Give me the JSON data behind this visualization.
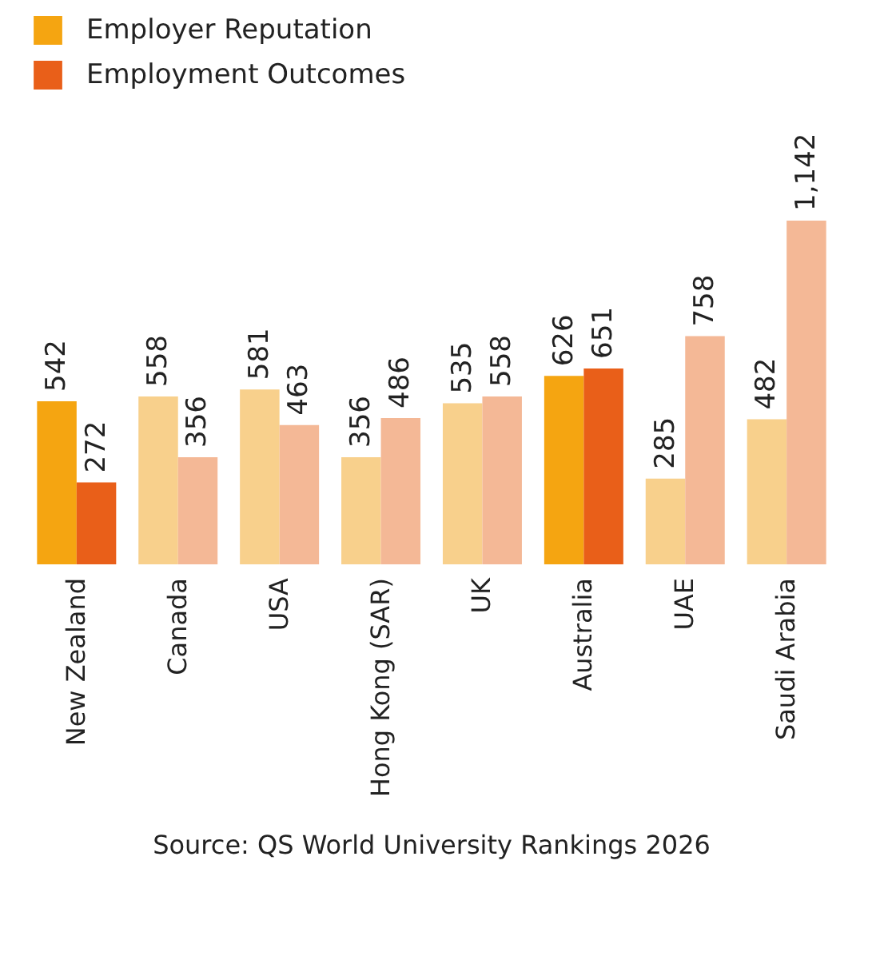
{
  "chart_data": {
    "type": "bar",
    "categories": [
      "New Zealand",
      "Canada",
      "USA",
      "Hong Kong (SAR)",
      "UK",
      "Australia",
      "UAE",
      "Saudi Arabia"
    ],
    "series": [
      {
        "name": "Employer Reputation",
        "color": "#f5a511",
        "colors": [
          "#f5a511",
          "#f8d08c",
          "#f8d08c",
          "#f8d08c",
          "#f8d08c",
          "#f5a511",
          "#f8d08c",
          "#f8d08c"
        ],
        "values": [
          542,
          558,
          581,
          356,
          535,
          626,
          285,
          482
        ],
        "value_labels": [
          "542",
          "558",
          "581",
          "356",
          "535",
          "626",
          "285",
          "482"
        ]
      },
      {
        "name": "Employment Outcomes",
        "color": "#e95f19",
        "colors": [
          "#e95f19",
          "#f4b896",
          "#f4b896",
          "#f4b896",
          "#f4b896",
          "#e95f19",
          "#f4b896",
          "#f4b896"
        ],
        "values": [
          272,
          356,
          463,
          486,
          558,
          651,
          758,
          1142
        ],
        "value_labels": [
          "272",
          "356",
          "463",
          "486",
          "558",
          "651",
          "758",
          "1,142"
        ]
      }
    ],
    "legend": "top left",
    "annotations": [
      "Source: QS World University Rankings 2026"
    ]
  }
}
